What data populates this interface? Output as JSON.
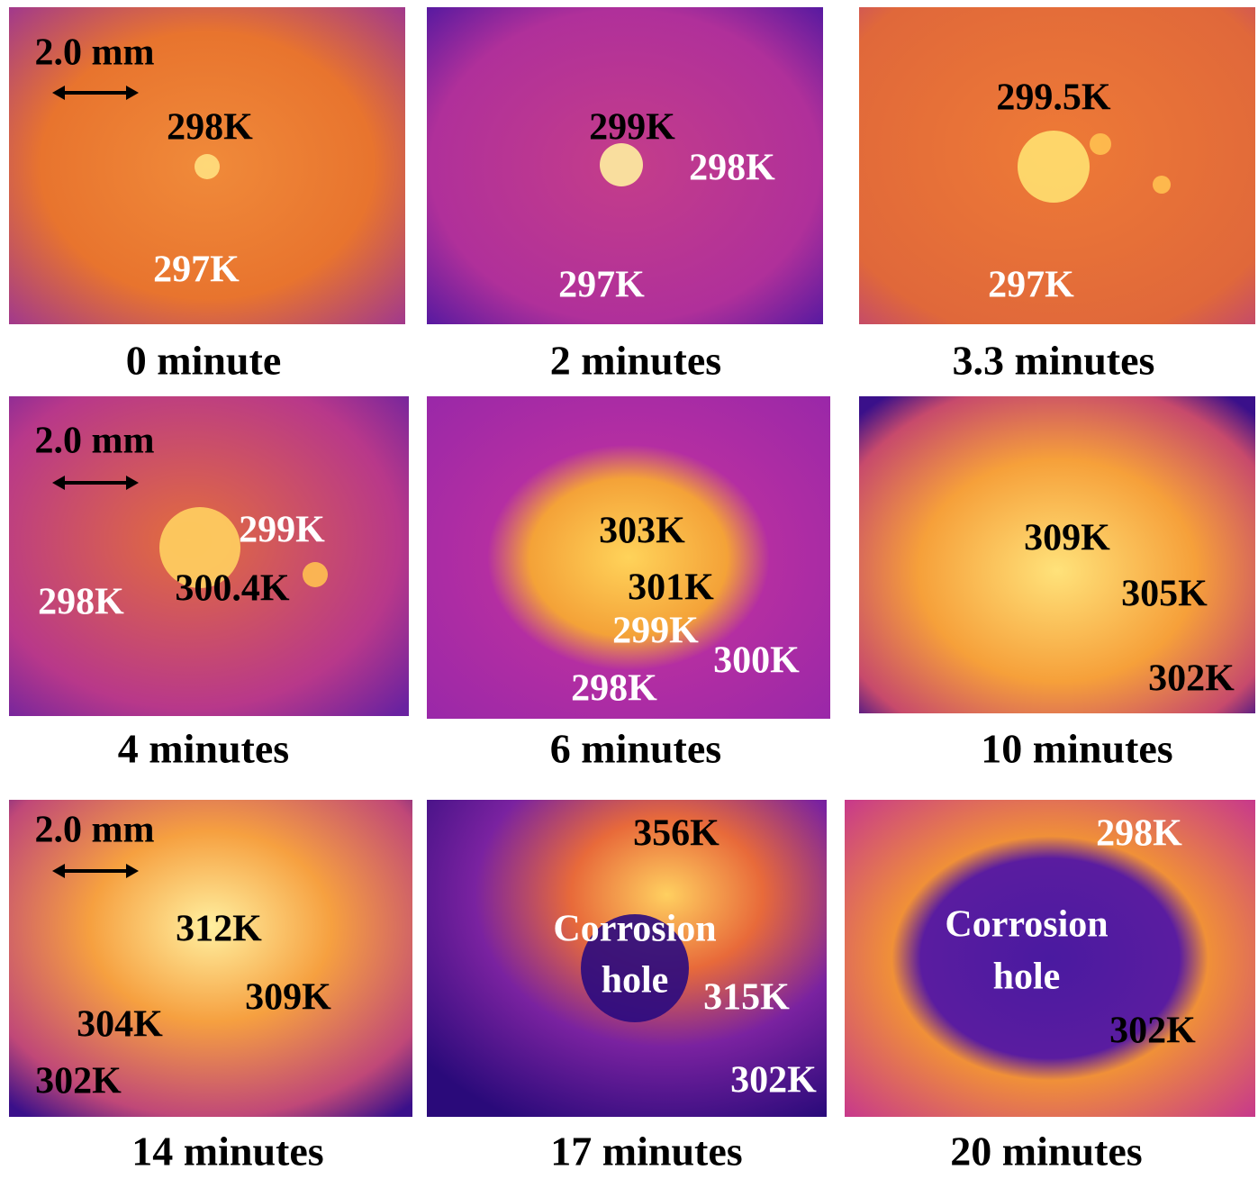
{
  "panels": [
    {
      "caption": "0 minute",
      "scale_bar": "2.0 mm",
      "labels": [
        "298K",
        "297K"
      ]
    },
    {
      "caption": "2 minutes",
      "labels": [
        "299K",
        "298K",
        "297K"
      ]
    },
    {
      "caption": "3.3 minutes",
      "labels": [
        "299.5K",
        "297K"
      ]
    },
    {
      "caption": "4 minutes",
      "scale_bar": "2.0 mm",
      "labels": [
        "299K",
        "300.4K",
        "298K"
      ]
    },
    {
      "caption": "6 minutes",
      "labels": [
        "303K",
        "301K",
        "299K",
        "300K",
        "298K"
      ]
    },
    {
      "caption": "10 minutes",
      "labels": [
        "309K",
        "305K",
        "302K"
      ]
    },
    {
      "caption": "14 minutes",
      "scale_bar": "2.0 mm",
      "labels": [
        "312K",
        "309K",
        "304K",
        "302K"
      ]
    },
    {
      "caption": "17 minutes",
      "labels": [
        "356K",
        "Corrosion",
        "hole",
        "315K",
        "302K"
      ]
    },
    {
      "caption": "20 minutes",
      "labels": [
        "298K",
        "Corrosion",
        "hole",
        "302K"
      ]
    }
  ]
}
